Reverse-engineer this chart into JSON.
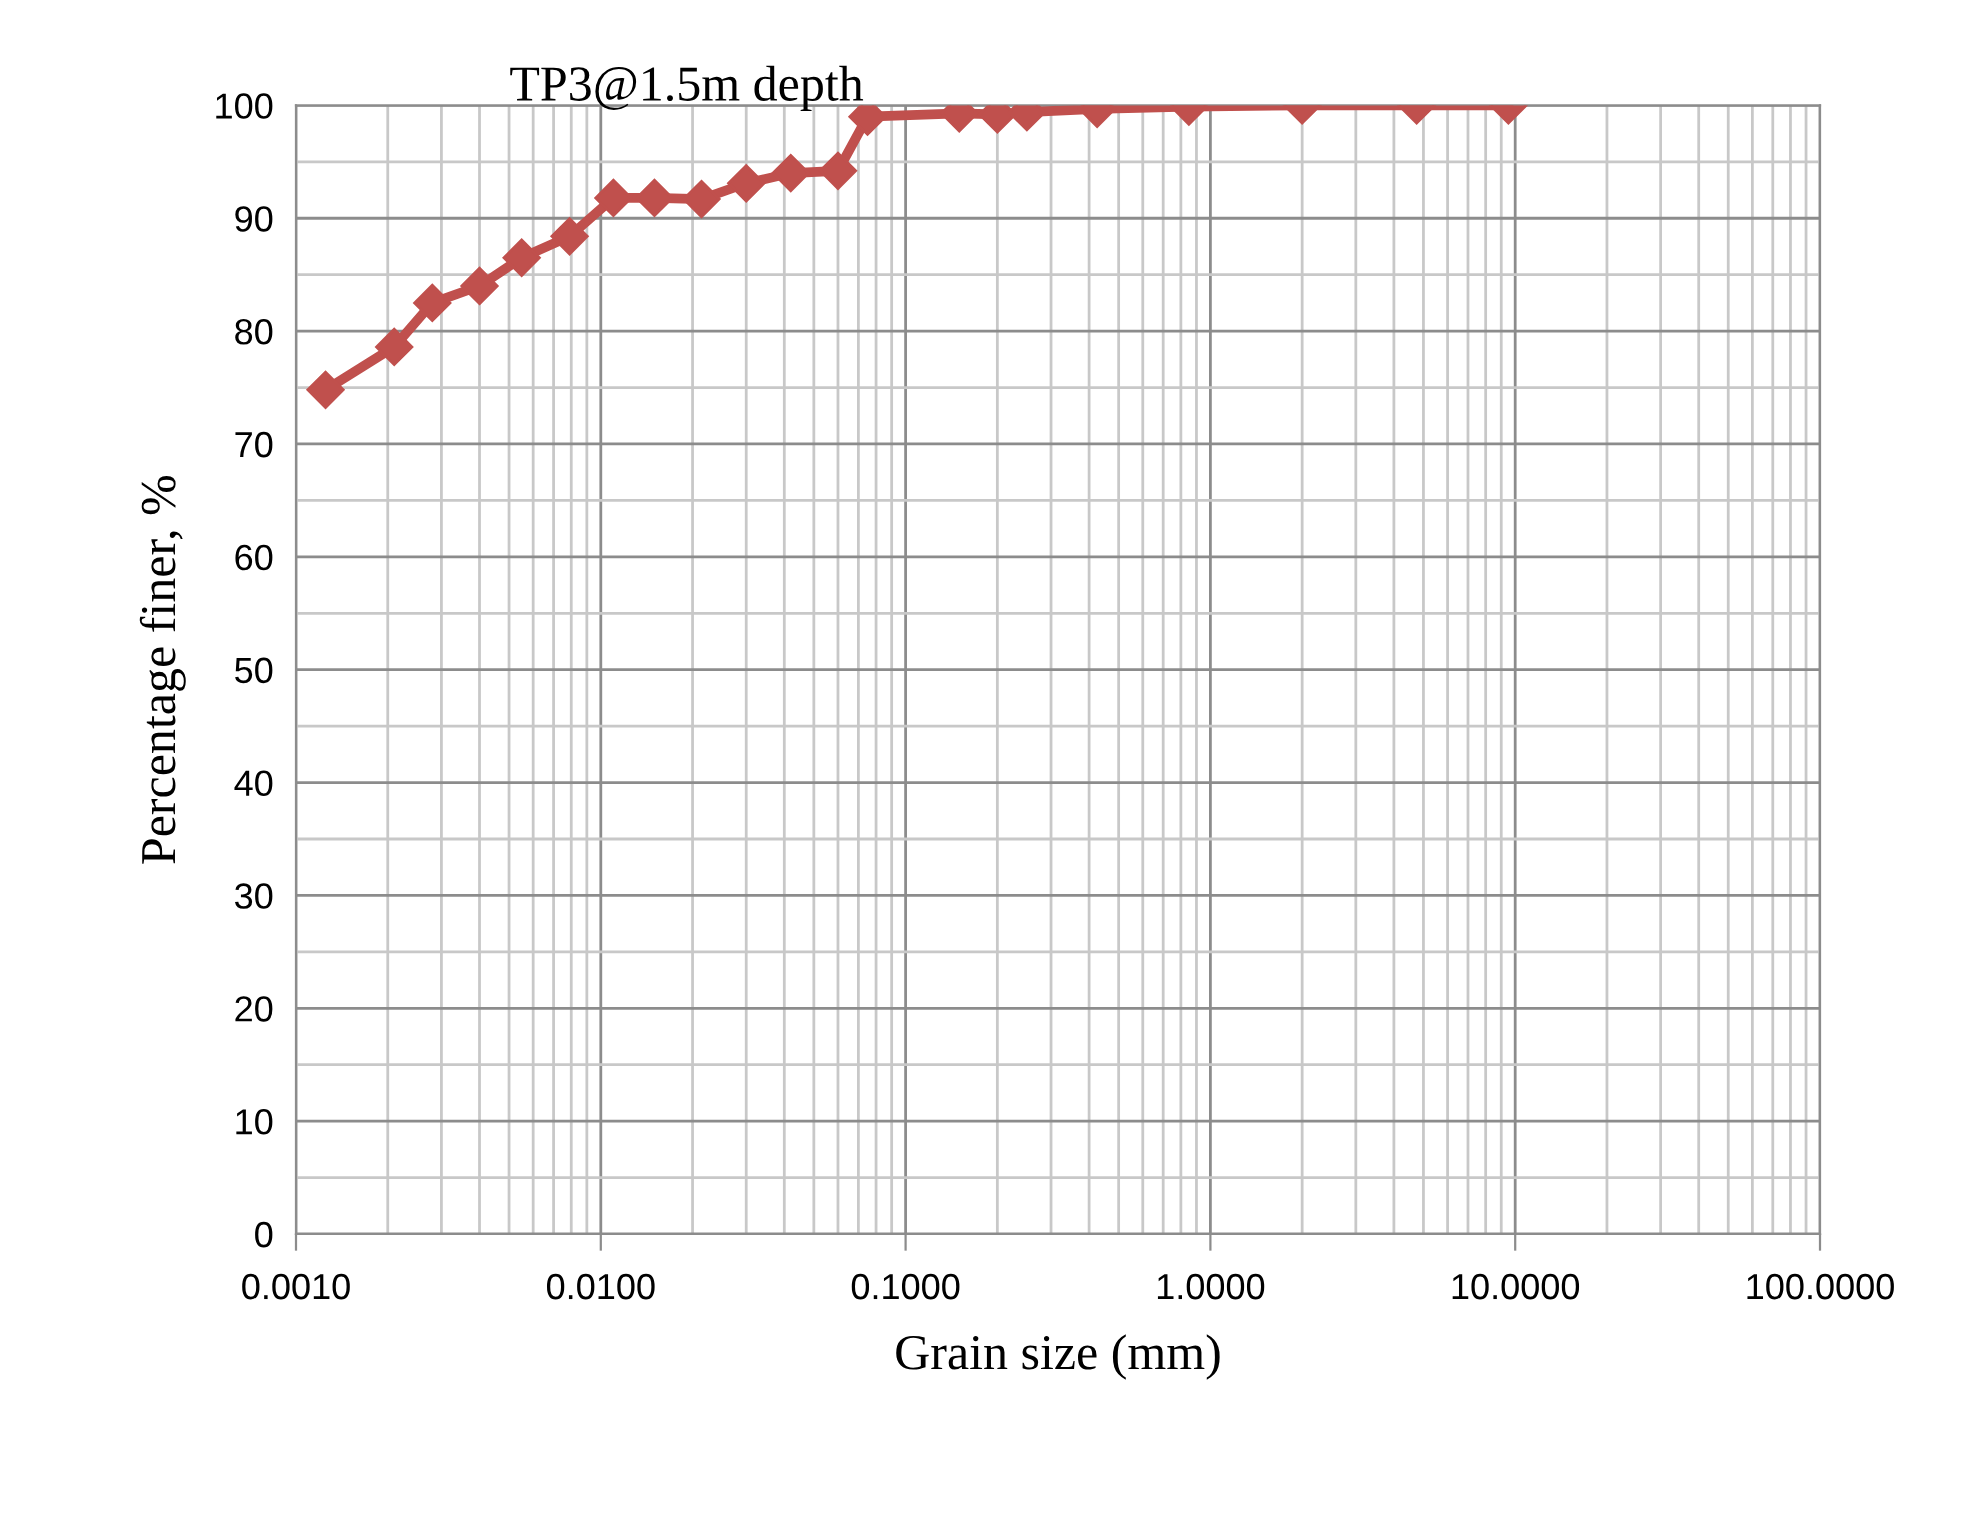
{
  "chart_data": {
    "type": "line",
    "title": "TP3@1.5m depth",
    "xlabel": "Grain size (mm)",
    "ylabel": "Percentage finer, %",
    "log": "x",
    "grid": true,
    "marker": "diamond",
    "line_style": "solid",
    "legend": false,
    "xlim": [
      0.001,
      100
    ],
    "ylim": [
      0,
      100
    ],
    "xticks": [
      {
        "value": 0.001,
        "label": "0.0010"
      },
      {
        "value": 0.01,
        "label": "0.0100"
      },
      {
        "value": 0.1,
        "label": "0.1000"
      },
      {
        "value": 1,
        "label": "1.0000"
      },
      {
        "value": 10,
        "label": "10.0000"
      },
      {
        "value": 100,
        "label": "100.0000"
      }
    ],
    "yticks": [
      0,
      10,
      20,
      30,
      40,
      50,
      60,
      70,
      80,
      90,
      100
    ],
    "series": [
      {
        "color": "#c0504d",
        "x": [
          0.00125,
          0.0021,
          0.0028,
          0.004,
          0.0055,
          0.0079,
          0.011,
          0.015,
          0.0214,
          0.03,
          0.042,
          0.06,
          0.075,
          0.15,
          0.2,
          0.25,
          0.425,
          0.85,
          2,
          4.75,
          9.5
        ],
        "values": [
          74.8,
          78.6,
          82.5,
          84.0,
          86.5,
          88.4,
          91.8,
          91.8,
          91.7,
          93.1,
          94.0,
          94.2,
          99.0,
          99.3,
          99.2,
          99.4,
          99.7,
          99.9,
          100,
          100,
          100
        ]
      }
    ]
  }
}
